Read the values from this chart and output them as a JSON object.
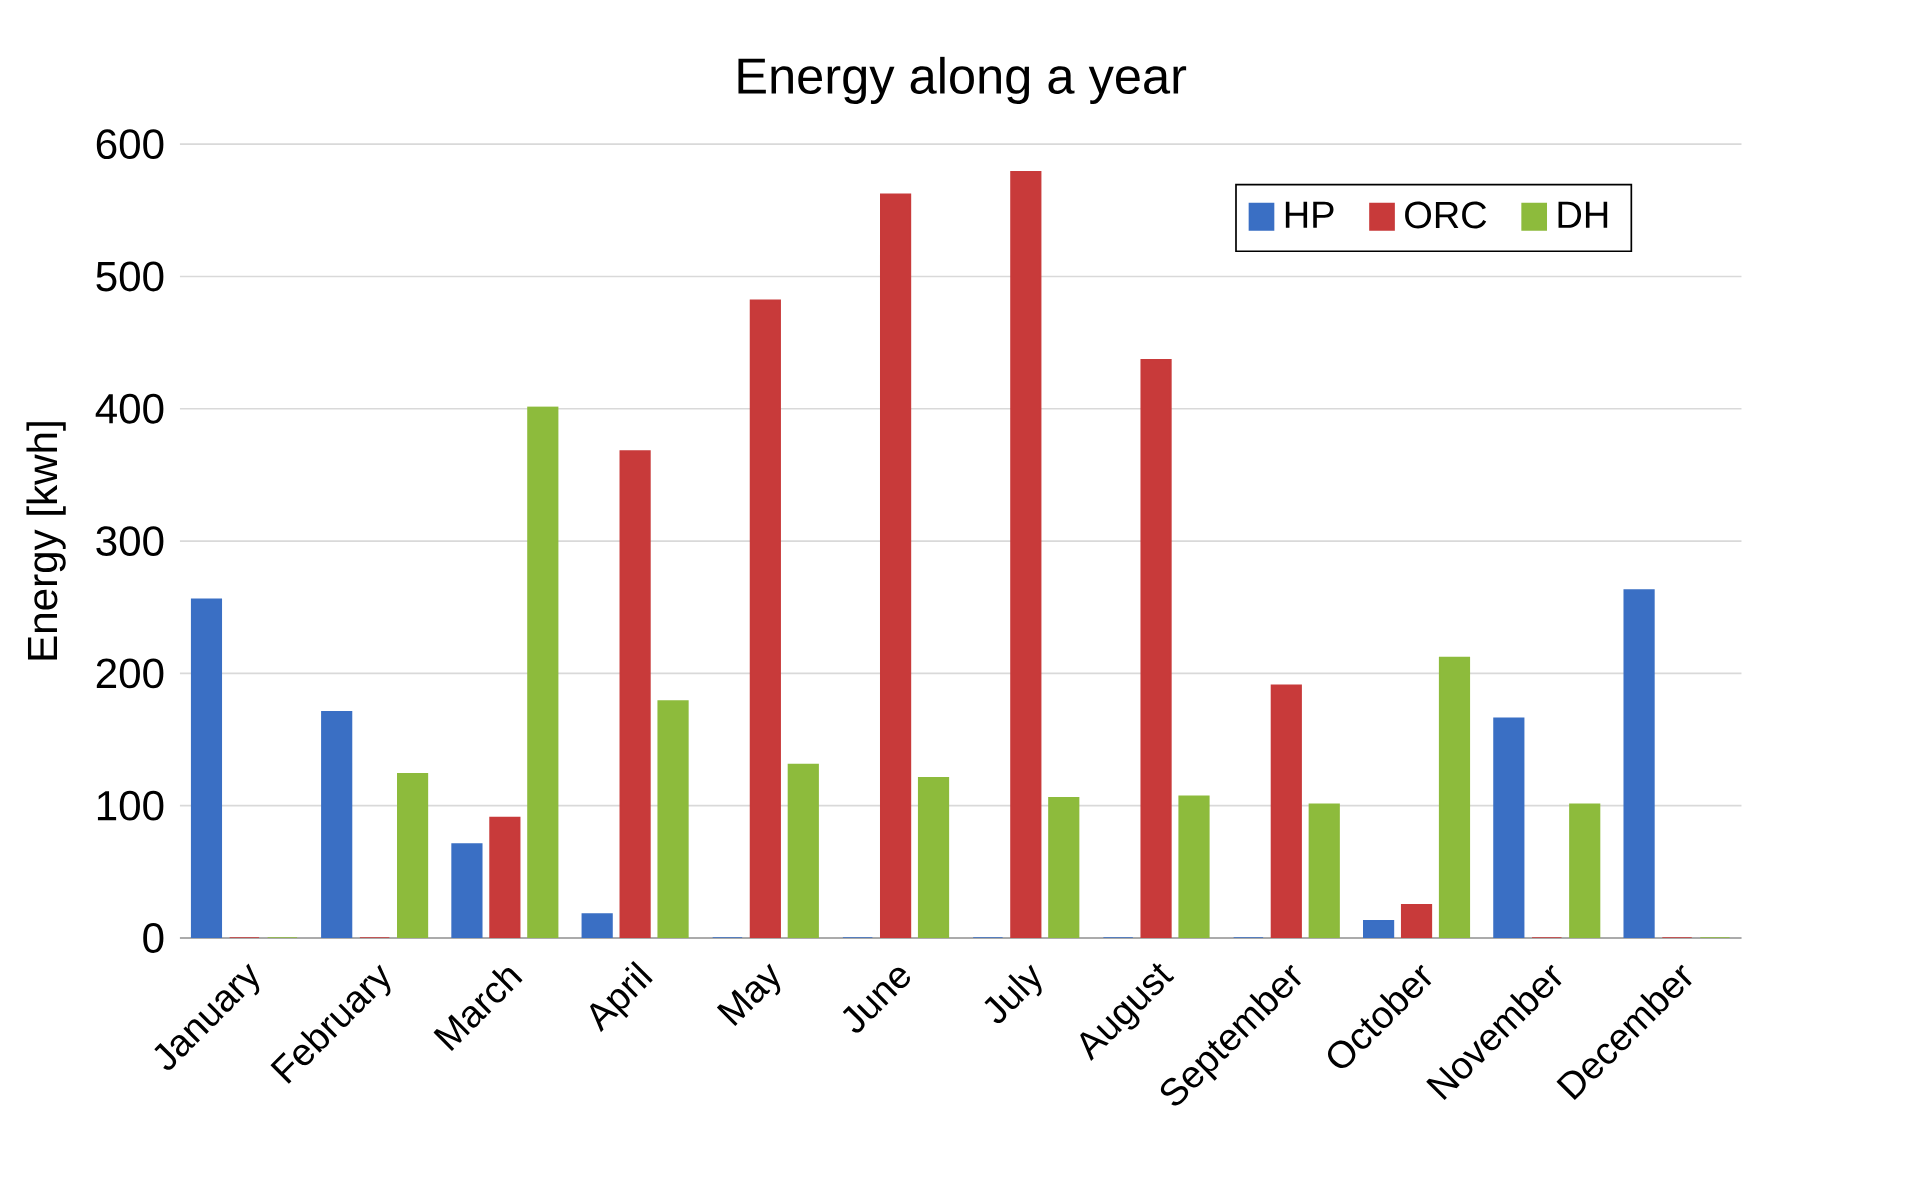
{
  "chart_data": {
    "type": "bar",
    "title": "Energy along a year",
    "ylabel": "Energy [kwh]",
    "categories": [
      "January",
      "February",
      "March",
      "April",
      "May",
      "June",
      "July",
      "August",
      "September",
      "October",
      "November",
      "December"
    ],
    "series": [
      {
        "name": "HP",
        "color": "#3a6fc4",
        "values": [
          256,
          171,
          71,
          18,
          0,
          0,
          0,
          0,
          0,
          13,
          166,
          263
        ]
      },
      {
        "name": "ORC",
        "color": "#c83a3a",
        "values": [
          0,
          0,
          91,
          368,
          482,
          562,
          579,
          437,
          191,
          25,
          0,
          0
        ]
      },
      {
        "name": "DH",
        "color": "#8dbb3c",
        "values": [
          0,
          124,
          401,
          179,
          131,
          121,
          106,
          107,
          101,
          212,
          101,
          0
        ]
      }
    ],
    "ylim": [
      0,
      600
    ],
    "yticks": [
      0,
      100,
      200,
      300,
      400,
      500,
      600
    ],
    "grid": "y",
    "legend": "top right"
  }
}
